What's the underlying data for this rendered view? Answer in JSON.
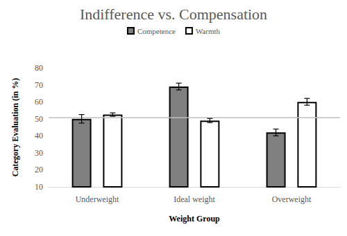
{
  "chart_data": {
    "type": "bar",
    "title": "Indifference vs. Compensation",
    "x_label": "Weight Group",
    "y_label": "Category Evaluation (in %)",
    "categories": [
      "Underweight",
      "Ideal weight",
      "Overweight"
    ],
    "series": [
      {
        "name": "Competence",
        "color": "#808080",
        "values": [
          50,
          69,
          42
        ],
        "errors": [
          2.5,
          2,
          2
        ]
      },
      {
        "name": "Warmth",
        "color": "#ffffff",
        "values": [
          52.5,
          49,
          60
        ],
        "errors": [
          1,
          1.2,
          2
        ]
      }
    ],
    "ylim": [
      10,
      80
    ],
    "yticks": [
      10,
      20,
      30,
      40,
      50,
      60,
      70,
      80
    ],
    "grid": false,
    "legend": "top",
    "reference_line": 51
  }
}
